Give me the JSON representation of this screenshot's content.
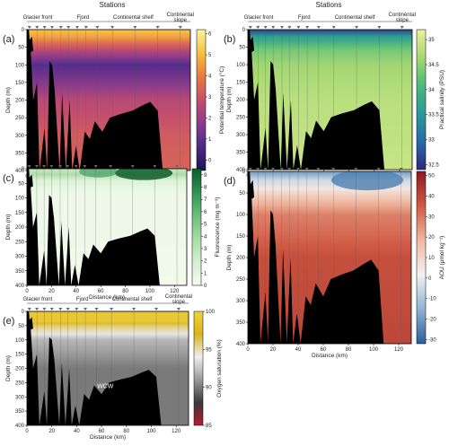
{
  "header": {
    "left_stations": "Stations",
    "right_stations": "Stations"
  },
  "regions": [
    "Glacier front",
    "Fjord",
    "Continental shelf",
    "Continental",
    "slope"
  ],
  "chart_data": [
    {
      "type": "heatmap",
      "label": "(a)",
      "xlabel": "Distance (km)",
      "ylabel": "Depth (m)",
      "colorbar_label": "Potential temperature (°C)",
      "xlim": [
        0,
        130
      ],
      "ylim": [
        400,
        0
      ],
      "xticks": [
        0,
        20,
        40,
        60,
        80,
        100,
        120
      ],
      "yticks": [
        0,
        50,
        100,
        150,
        200,
        250,
        300,
        350,
        400
      ],
      "colorbar_ticks": [
        0,
        1,
        2,
        3,
        4,
        5,
        6
      ],
      "colorbar_range": [
        -0.5,
        6.2
      ],
      "colorbar_colors": [
        "#1a1552",
        "#4b2a8a",
        "#8a3b8c",
        "#c44e6e",
        "#e97a3f",
        "#f6c040",
        "#fbf3a0"
      ],
      "profile_values": [
        [
          0,
          5.2
        ],
        [
          20,
          4.6
        ],
        [
          50,
          3.0
        ],
        [
          100,
          0.8
        ],
        [
          150,
          1.6
        ],
        [
          200,
          2.6
        ],
        [
          300,
          3.2
        ],
        [
          400,
          3.4
        ]
      ]
    },
    {
      "type": "heatmap",
      "label": "(b)",
      "xlabel": "Distance (km)",
      "ylabel": "Depth (m)",
      "colorbar_label": "Practical salinity (PSU)",
      "xlim": [
        0,
        130
      ],
      "ylim": [
        400,
        0
      ],
      "xticks": [
        0,
        20,
        40,
        60,
        80,
        100,
        120
      ],
      "yticks": [
        0,
        50,
        100,
        150,
        200,
        250,
        300,
        350,
        400
      ],
      "colorbar_ticks": [
        32.5,
        33,
        33.5,
        34,
        34.5,
        35
      ],
      "colorbar_range": [
        32.4,
        35.2
      ],
      "colorbar_colors": [
        "#2b2b7a",
        "#2a6aa8",
        "#2b9a9a",
        "#4cb87a",
        "#a7d873",
        "#e9f19a"
      ],
      "profile_values": [
        [
          0,
          32.6
        ],
        [
          20,
          33.6
        ],
        [
          50,
          34.3
        ],
        [
          100,
          34.6
        ],
        [
          200,
          34.8
        ],
        [
          400,
          34.9
        ]
      ]
    },
    {
      "type": "heatmap",
      "label": "(c)",
      "xlabel": "Distance (km)",
      "ylabel": "Depth (m)",
      "colorbar_label": "Fluorescence (mg m⁻³)",
      "xlim": [
        0,
        130
      ],
      "ylim": [
        400,
        0
      ],
      "xticks": [
        0,
        20,
        40,
        60,
        80,
        100,
        120
      ],
      "yticks": [
        0,
        50,
        100,
        150,
        200,
        250,
        300,
        350,
        400
      ],
      "colorbar_ticks": [
        0,
        1,
        2,
        3,
        4,
        5,
        6,
        7,
        8,
        9
      ],
      "colorbar_range": [
        0,
        9.5
      ],
      "colorbar_colors": [
        "#f4fbef",
        "#d6efcf",
        "#a8dca6",
        "#6cbd7d",
        "#2f9253",
        "#0d5c2c"
      ],
      "profile_values": [
        [
          0,
          2.5
        ],
        [
          20,
          3.5
        ],
        [
          40,
          1.5
        ],
        [
          80,
          0.4
        ],
        [
          400,
          0.2
        ]
      ]
    },
    {
      "type": "heatmap",
      "label": "(d)",
      "xlabel": "Distance (km)",
      "ylabel": "Depth (m)",
      "colorbar_label": "AOU (μmol kg⁻¹)",
      "xlim": [
        0,
        130
      ],
      "ylim": [
        400,
        0
      ],
      "xticks": [
        0,
        20,
        40,
        60,
        80,
        100,
        120
      ],
      "yticks": [
        0,
        50,
        100,
        150,
        200,
        250,
        300,
        350,
        400
      ],
      "colorbar_ticks": [
        -30,
        -20,
        -10,
        0,
        10,
        20,
        30,
        40,
        50
      ],
      "colorbar_range": [
        -32,
        52
      ],
      "colorbar_colors": [
        "#2c5d96",
        "#8fb3d3",
        "#f2f2f2",
        "#f0b8a0",
        "#d05a44",
        "#8c1a1f"
      ],
      "profile_values": [
        [
          0,
          -20
        ],
        [
          20,
          -5
        ],
        [
          50,
          10
        ],
        [
          100,
          28
        ],
        [
          200,
          38
        ],
        [
          400,
          40
        ]
      ]
    },
    {
      "type": "heatmap",
      "label": "(e)",
      "xlabel": "Distance (km)",
      "ylabel": "Depth (m)",
      "colorbar_label": "Oxygen saturation (%)",
      "xlim": [
        0,
        130
      ],
      "ylim": [
        400,
        0
      ],
      "xticks": [
        0,
        20,
        40,
        60,
        80,
        100,
        120
      ],
      "yticks": [
        0,
        50,
        100,
        150,
        200,
        250,
        300,
        350,
        400
      ],
      "colorbar_ticks": [
        85,
        90,
        95,
        100
      ],
      "colorbar_range": [
        85,
        100
      ],
      "colorbar_colors": [
        "#b8192b",
        "#3a3a3a",
        "#9a9a9a",
        "#efefef",
        "#d9b41f",
        "#f2d13a"
      ],
      "profile_values": [
        [
          0,
          99
        ],
        [
          20,
          101
        ],
        [
          50,
          96
        ],
        [
          100,
          92
        ],
        [
          200,
          90
        ],
        [
          400,
          90
        ]
      ],
      "annotation": "WCW"
    }
  ]
}
